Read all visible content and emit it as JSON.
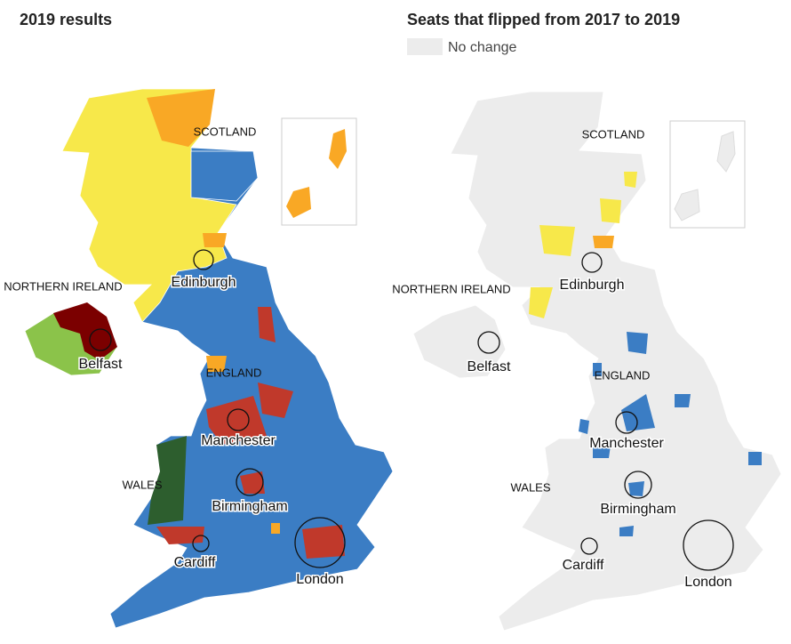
{
  "maps": [
    {
      "title": "2019 results",
      "regions": [
        "SCOTLAND",
        "NORTHERN IRELAND",
        "ENGLAND",
        "WALES"
      ],
      "cities": [
        "Edinburgh",
        "Belfast",
        "Manchester",
        "Birmingham",
        "Cardiff",
        "London"
      ]
    },
    {
      "title": "Seats that flipped from 2017 to 2019",
      "legend": [
        "No change"
      ],
      "regions": [
        "SCOTLAND",
        "NORTHERN IRELAND",
        "ENGLAND",
        "WALES"
      ],
      "cities": [
        "Edinburgh",
        "Belfast",
        "Manchester",
        "Birmingham",
        "Cardiff",
        "London"
      ]
    }
  ]
}
